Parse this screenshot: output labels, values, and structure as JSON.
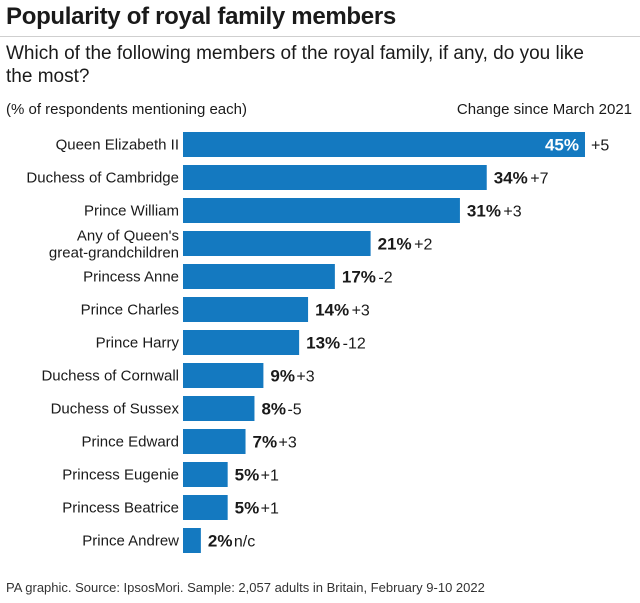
{
  "title": "Popularity of royal family members",
  "subtitle": "Which of the following members of the royal family, if any, do you like the most?",
  "unit_note": "(% of respondents mentioning each)",
  "change_header": "Change since March 2021",
  "footer": "PA graphic. Source: IpsosMori. Sample: 2,057 adults in Britain, February 9-10 2022",
  "colors": {
    "bar": "#1479c0",
    "text": "#1a1a1a",
    "inside_label": "#ffffff"
  },
  "chart_data": {
    "type": "bar",
    "orientation": "horizontal",
    "categories": [
      "Queen Elizabeth II",
      "Duchess of Cambridge",
      "Prince William",
      "Any of Queen's\ngreat-grandchildren",
      "Princess Anne",
      "Prince Charles",
      "Prince Harry",
      "Duchess of Cornwall",
      "Duchess of Sussex",
      "Prince Edward",
      "Princess Eugenie",
      "Princess Beatrice",
      "Prince Andrew"
    ],
    "values": [
      45,
      34,
      31,
      21,
      17,
      14,
      13,
      9,
      8,
      7,
      5,
      5,
      2
    ],
    "value_labels": [
      "45%",
      "34%",
      "31%",
      "21%",
      "17%",
      "14%",
      "13%",
      "9%",
      "8%",
      "7%",
      "5%",
      "5%",
      "2%"
    ],
    "changes": [
      "+5",
      "+7",
      "+3",
      "+2",
      "-2",
      "+3",
      "-12",
      "+3",
      "-5",
      "+3",
      "+1",
      "+1",
      "n/c"
    ],
    "xlim": [
      0,
      45
    ],
    "grid": false,
    "legend": "none"
  }
}
